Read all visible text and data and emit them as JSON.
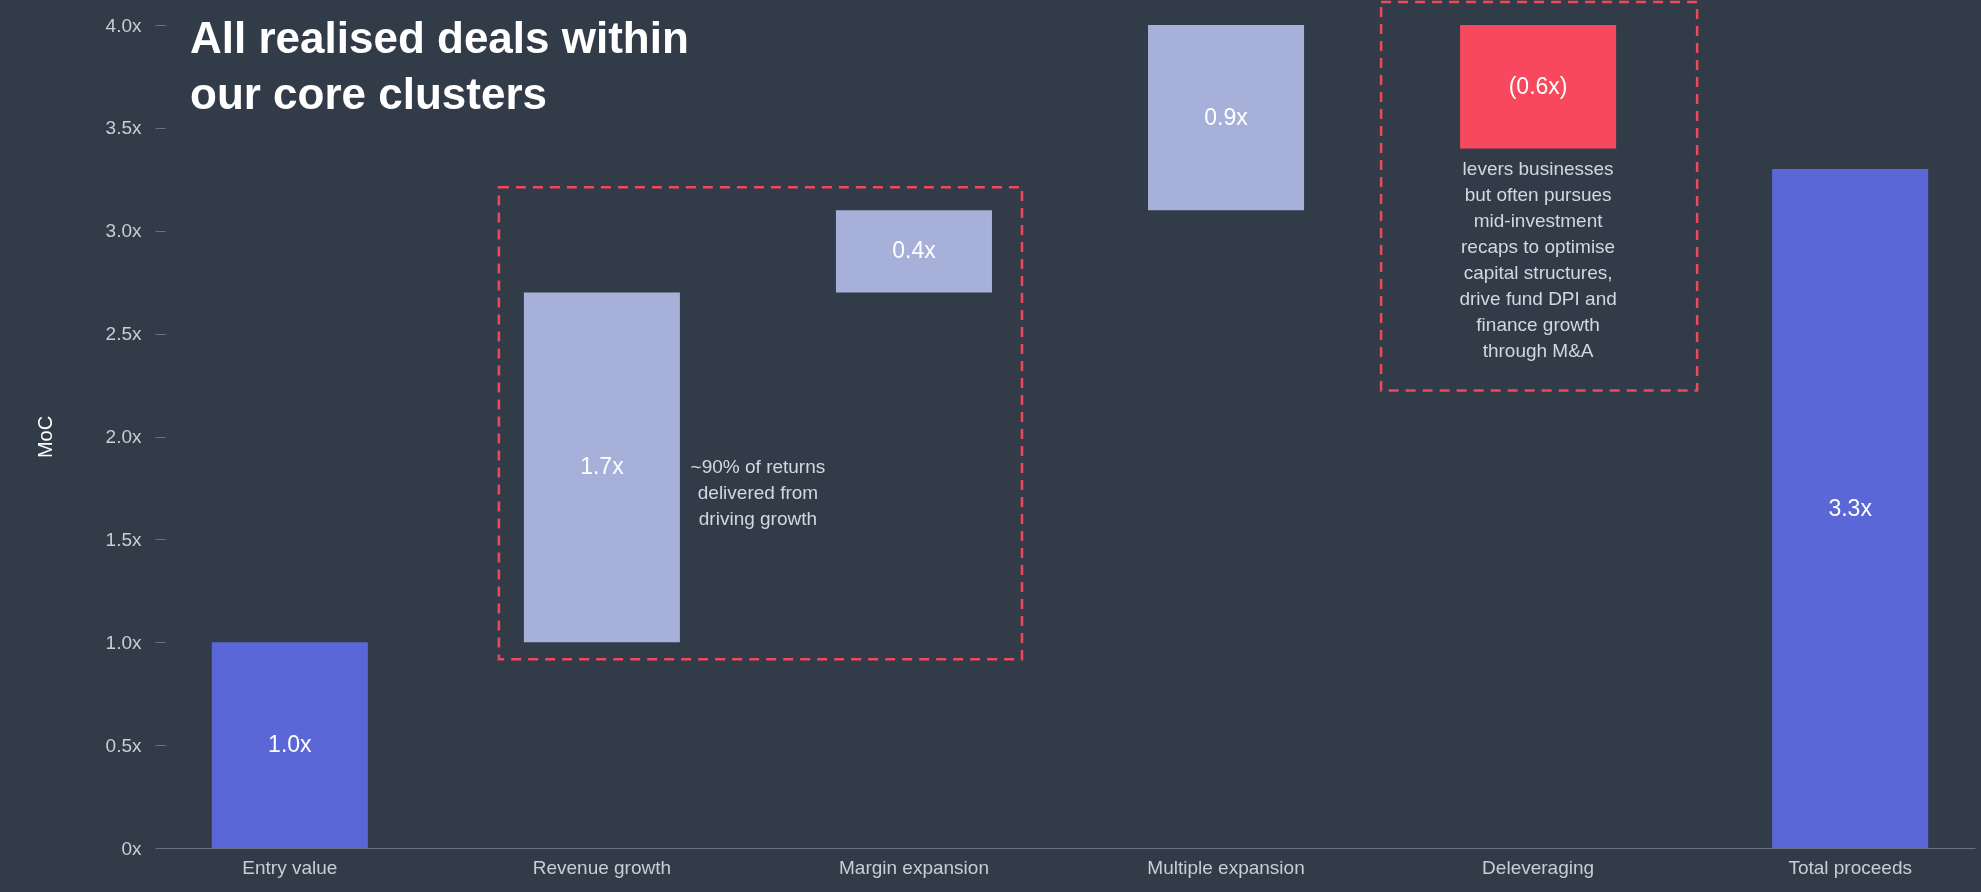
{
  "chart_data": {
    "type": "bar",
    "title": "All realised deals within\nour core clusters",
    "ylabel": "MoC",
    "categories": [
      "Entry value",
      "Revenue growth",
      "Margin expansion",
      "Multiple expansion",
      "Deleveraging",
      "Total proceeds"
    ],
    "values": [
      1.0,
      1.7,
      0.4,
      0.9,
      -0.6,
      3.3
    ],
    "base": [
      0,
      1.0,
      2.7,
      3.1,
      4.0,
      0
    ],
    "colors": [
      "#5b67d6",
      "#a6b0d9",
      "#a6b0d9",
      "#a6b0d9",
      "#f8485e",
      "#5b67d6"
    ],
    "value_labels": [
      "1.0x",
      "1.7x",
      "0.4x",
      "0.9x",
      "(0.6x)",
      "3.3x"
    ],
    "ylim": [
      0,
      4
    ],
    "yticks": [
      {
        "value": 0,
        "label": "0x"
      },
      {
        "value": 0.5,
        "label": "0.5x"
      },
      {
        "value": 1,
        "label": "1.0x"
      },
      {
        "value": 1.5,
        "label": "1.5x"
      },
      {
        "value": 2,
        "label": "2.0x"
      },
      {
        "value": 2.5,
        "label": "2.5x"
      },
      {
        "value": 3,
        "label": "3.0x"
      },
      {
        "value": 3.5,
        "label": "3.5x"
      },
      {
        "value": 4,
        "label": "4.0x"
      }
    ],
    "grid": false,
    "legend": false,
    "annotations": [
      "~90% of returns\ndelivered from\ndriving growth",
      "levers businesses\nbut often pursues\nmid-investment\nrecaps to optimise\ncapital structures,\ndrive fund DPI and\nfinance growth\nthrough M&A"
    ]
  }
}
